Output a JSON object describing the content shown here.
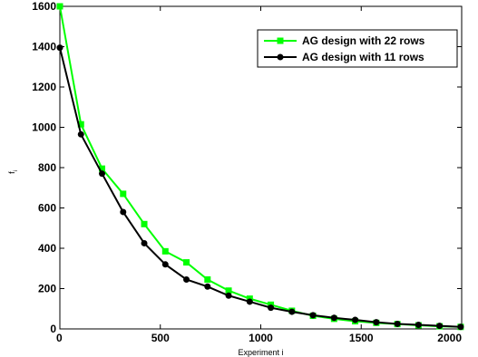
{
  "chart_data": {
    "type": "line",
    "title": "",
    "xlabel": "Experiment i",
    "ylabel": "f_i",
    "xlim": [
      0,
      2000
    ],
    "ylim": [
      0,
      1600
    ],
    "xticks": [
      0,
      500,
      1000,
      1500,
      2000
    ],
    "yticks": [
      0,
      200,
      400,
      600,
      800,
      1000,
      1200,
      1400,
      1600
    ],
    "grid": false,
    "legend_position": "top-right",
    "series": [
      {
        "name": "AG design with 22 rows",
        "color": "#00ff00",
        "marker": "square",
        "x": [
          0,
          105,
          210,
          315,
          420,
          525,
          630,
          735,
          840,
          945,
          1050,
          1155,
          1260,
          1365,
          1470,
          1575,
          1680,
          1785,
          1890,
          1995
        ],
        "y": [
          1600,
          1015,
          795,
          670,
          520,
          385,
          330,
          245,
          190,
          150,
          120,
          90,
          65,
          50,
          38,
          30,
          24,
          18,
          13,
          10
        ]
      },
      {
        "name": "AG design with 11 rows",
        "color": "#000000",
        "marker": "circle",
        "x": [
          0,
          105,
          210,
          315,
          420,
          525,
          630,
          735,
          840,
          945,
          1050,
          1155,
          1260,
          1365,
          1470,
          1575,
          1680,
          1785,
          1890,
          1995
        ],
        "y": [
          1395,
          965,
          770,
          580,
          425,
          320,
          245,
          210,
          165,
          135,
          105,
          85,
          68,
          55,
          45,
          33,
          25,
          20,
          15,
          10
        ]
      }
    ]
  }
}
